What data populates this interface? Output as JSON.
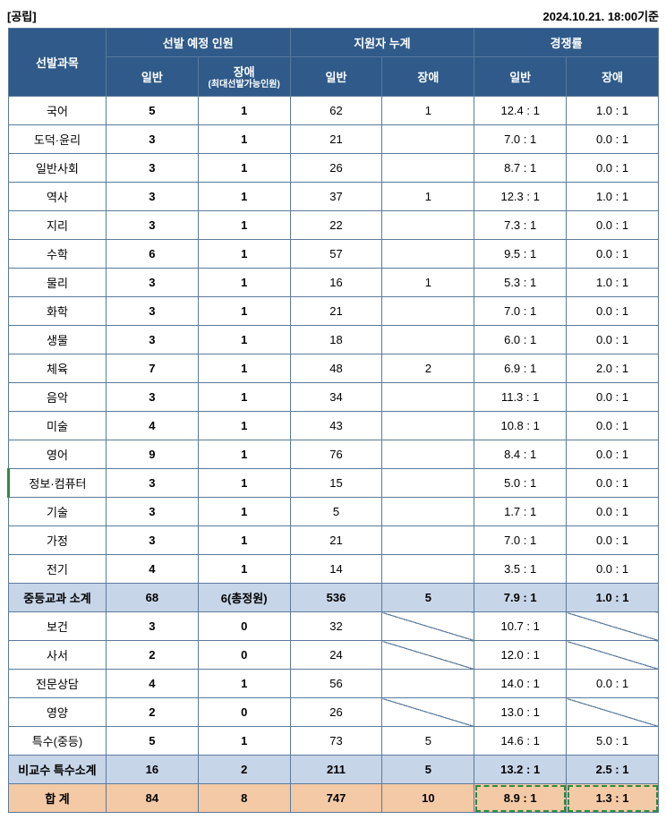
{
  "header": {
    "left_label": "[공립]",
    "right_label": "2024.10.21. 18:00기준"
  },
  "columns": {
    "subject": "선발과목",
    "planned": "선발 예정 인원",
    "applicants": "지원자 누계",
    "ratio": "경쟁률",
    "general": "일반",
    "disabled": "장애",
    "disabled_note": "(최대선발가능인원)"
  },
  "rows": [
    {
      "subject": "국어",
      "plan_g": "5",
      "plan_d": "1",
      "app_g": "62",
      "app_d": "1",
      "r_g": "12.4 : 1",
      "r_d": "1.0 : 1"
    },
    {
      "subject": "도덕·윤리",
      "plan_g": "3",
      "plan_d": "1",
      "app_g": "21",
      "app_d": "",
      "r_g": "7.0 : 1",
      "r_d": "0.0 : 1"
    },
    {
      "subject": "일반사회",
      "plan_g": "3",
      "plan_d": "1",
      "app_g": "26",
      "app_d": "",
      "r_g": "8.7 : 1",
      "r_d": "0.0 : 1"
    },
    {
      "subject": "역사",
      "plan_g": "3",
      "plan_d": "1",
      "app_g": "37",
      "app_d": "1",
      "r_g": "12.3 : 1",
      "r_d": "1.0 : 1"
    },
    {
      "subject": "지리",
      "plan_g": "3",
      "plan_d": "1",
      "app_g": "22",
      "app_d": "",
      "r_g": "7.3 : 1",
      "r_d": "0.0 : 1"
    },
    {
      "subject": "수학",
      "plan_g": "6",
      "plan_d": "1",
      "app_g": "57",
      "app_d": "",
      "r_g": "9.5 : 1",
      "r_d": "0.0 : 1"
    },
    {
      "subject": "물리",
      "plan_g": "3",
      "plan_d": "1",
      "app_g": "16",
      "app_d": "1",
      "r_g": "5.3 : 1",
      "r_d": "1.0 : 1"
    },
    {
      "subject": "화학",
      "plan_g": "3",
      "plan_d": "1",
      "app_g": "21",
      "app_d": "",
      "r_g": "7.0 : 1",
      "r_d": "0.0 : 1"
    },
    {
      "subject": "생물",
      "plan_g": "3",
      "plan_d": "1",
      "app_g": "18",
      "app_d": "",
      "r_g": "6.0 : 1",
      "r_d": "0.0 : 1"
    },
    {
      "subject": "체육",
      "plan_g": "7",
      "plan_d": "1",
      "app_g": "48",
      "app_d": "2",
      "r_g": "6.9 : 1",
      "r_d": "2.0 : 1"
    },
    {
      "subject": "음악",
      "plan_g": "3",
      "plan_d": "1",
      "app_g": "34",
      "app_d": "",
      "r_g": "11.3 : 1",
      "r_d": "0.0 : 1"
    },
    {
      "subject": "미술",
      "plan_g": "4",
      "plan_d": "1",
      "app_g": "43",
      "app_d": "",
      "r_g": "10.8 : 1",
      "r_d": "0.0 : 1",
      "dashed": true
    },
    {
      "subject": "영어",
      "plan_g": "9",
      "plan_d": "1",
      "app_g": "76",
      "app_d": "",
      "r_g": "8.4 : 1",
      "r_d": "0.0 : 1"
    },
    {
      "subject": "정보·컴퓨터",
      "plan_g": "3",
      "plan_d": "1",
      "app_g": "15",
      "app_d": "",
      "r_g": "5.0 : 1",
      "r_d": "0.0 : 1",
      "green_left": true
    },
    {
      "subject": "기술",
      "plan_g": "3",
      "plan_d": "1",
      "app_g": "5",
      "app_d": "",
      "r_g": "1.7 : 1",
      "r_d": "0.0 : 1"
    },
    {
      "subject": "가정",
      "plan_g": "3",
      "plan_d": "1",
      "app_g": "21",
      "app_d": "",
      "r_g": "7.0 : 1",
      "r_d": "0.0 : 1"
    },
    {
      "subject": "전기",
      "plan_g": "4",
      "plan_d": "1",
      "app_g": "14",
      "app_d": "",
      "r_g": "3.5 : 1",
      "r_d": "0.0 : 1"
    }
  ],
  "subtotal1": {
    "subject": "중등교과 소계",
    "plan_g": "68",
    "plan_d": "6(총정원)",
    "app_g": "536",
    "app_d": "5",
    "r_g": "7.9 : 1",
    "r_d": "1.0 : 1"
  },
  "rows2": [
    {
      "subject": "보건",
      "plan_g": "3",
      "plan_d": "0",
      "app_g": "32",
      "app_d": "DIAG",
      "r_g": "10.7 : 1",
      "r_d": "DIAG"
    },
    {
      "subject": "사서",
      "plan_g": "2",
      "plan_d": "0",
      "app_g": "24",
      "app_d": "DIAG",
      "r_g": "12.0 : 1",
      "r_d": "DIAG"
    },
    {
      "subject": "전문상담",
      "plan_g": "4",
      "plan_d": "1",
      "app_g": "56",
      "app_d": "",
      "r_g": "14.0 : 1",
      "r_d": "0.0 : 1"
    },
    {
      "subject": "영양",
      "plan_g": "2",
      "plan_d": "0",
      "app_g": "26",
      "app_d": "DIAG",
      "r_g": "13.0 : 1",
      "r_d": "DIAG"
    },
    {
      "subject": "특수(중등)",
      "plan_g": "5",
      "plan_d": "1",
      "app_g": "73",
      "app_d": "5",
      "r_g": "14.6 : 1",
      "r_d": "5.0 : 1"
    }
  ],
  "subtotal2": {
    "subject": "비교수 특수소계",
    "plan_g": "16",
    "plan_d": "2",
    "app_g": "211",
    "app_d": "5",
    "r_g": "13.2 : 1",
    "r_d": "2.5 : 1"
  },
  "total": {
    "subject": "합 계",
    "plan_g": "84",
    "plan_d": "8",
    "app_g": "747",
    "app_d": "10",
    "r_g": "8.9 : 1",
    "r_d": "1.3 : 1"
  }
}
